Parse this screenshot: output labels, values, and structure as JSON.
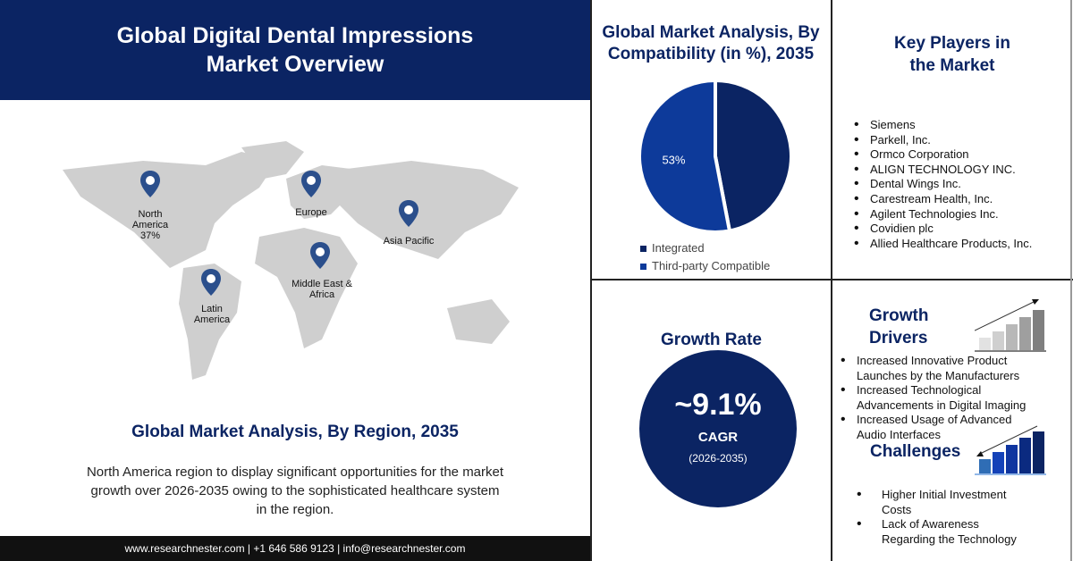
{
  "header": {
    "title": "Global Digital Dental Impressions Market Overview"
  },
  "map": {
    "pins": [
      {
        "label": "North America",
        "value": "37%"
      },
      {
        "label": "Europe"
      },
      {
        "label": "Asia Pacific"
      },
      {
        "label": "Middle East & Africa"
      },
      {
        "label": "Latin America"
      }
    ],
    "region_title": "Global Market Analysis, By Region, 2035",
    "description": "North America region to display significant opportunities for the market growth over 2026-2035 owing to the sophisticated healthcare system in the region."
  },
  "footer": {
    "contact": "www.researchnester.com | +1 646 586 9123 | info@researchnester.com"
  },
  "chart_data": {
    "type": "pie",
    "title": "Global Market Analysis, By Compatibility (in %), 2035",
    "categories": [
      "Integrated",
      "Third-party Compatible"
    ],
    "values": [
      47,
      53
    ],
    "data_labels": [
      "",
      "53%"
    ],
    "colors": [
      "#0b2463",
      "#0d3a9a"
    ],
    "legend": "bottom"
  },
  "key_players": {
    "title": "Key Players in the Market",
    "items": [
      "Siemens",
      "Parkell, Inc.",
      "Ormco Corporation",
      "ALIGN TECHNOLOGY INC.",
      "Dental Wings Inc.",
      "Carestream Health, Inc.",
      "Agilent Technologies Inc.",
      "Covidien plc",
      "Allied Healthcare Products, Inc."
    ]
  },
  "growth_rate": {
    "title": "Growth Rate",
    "value": "~9.1%",
    "label": "CAGR",
    "period": "(2026-2035)"
  },
  "growth_drivers": {
    "title": "Growth Drivers",
    "items": [
      "Increased Innovative Product Launches by the Manufacturers",
      "Increased Technological Advancements in Digital Imaging",
      "Increased Usage of Advanced Audio Interfaces"
    ]
  },
  "challenges": {
    "title": "Challenges",
    "items": [
      "Higher Initial Investment Costs",
      "Lack of Awareness Regarding the Technology"
    ]
  }
}
